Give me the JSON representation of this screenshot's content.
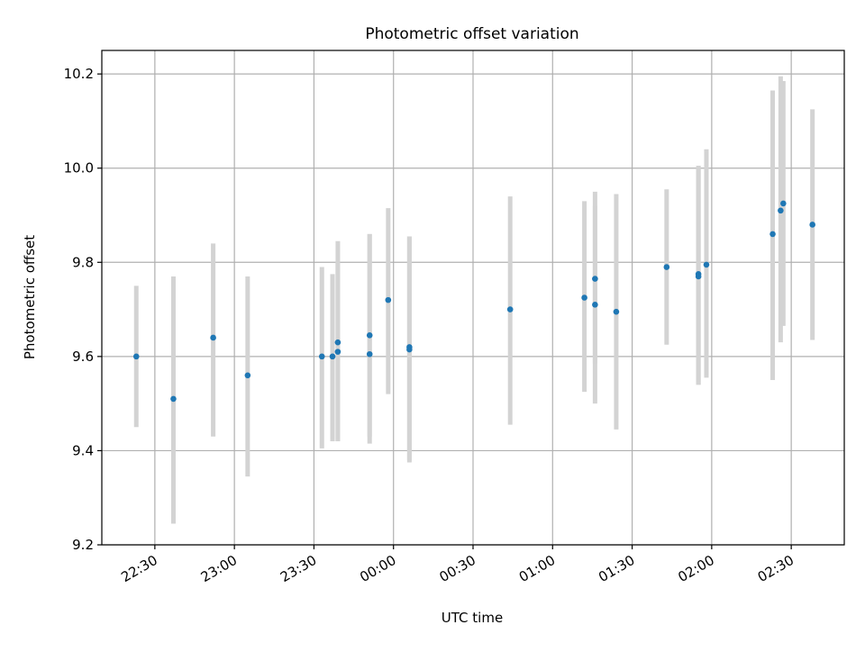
{
  "chart_data": {
    "type": "scatter",
    "title": "Photometric offset variation",
    "xlabel": "UTC time",
    "ylabel": "Photometric offset",
    "ylim": [
      9.2,
      10.25
    ],
    "yticks": [
      "9.2",
      "9.4",
      "9.6",
      "9.8",
      "10.0",
      "10.2"
    ],
    "xlim": [
      "22:10",
      "02:50"
    ],
    "xticks": [
      "22:30",
      "23:00",
      "23:30",
      "00:00",
      "00:30",
      "01:00",
      "01:30",
      "02:00",
      "02:30"
    ],
    "grid": true,
    "point_color": "#1f77b4",
    "errorbar_color": "#d3d3d3",
    "points": [
      {
        "t": "22:23",
        "y": 9.6,
        "lo": 9.45,
        "hi": 9.75
      },
      {
        "t": "22:37",
        "y": 9.51,
        "lo": 9.245,
        "hi": 9.77
      },
      {
        "t": "22:52",
        "y": 9.64,
        "lo": 9.43,
        "hi": 9.84
      },
      {
        "t": "23:05",
        "y": 9.56,
        "lo": 9.345,
        "hi": 9.77
      },
      {
        "t": "23:33",
        "y": 9.6,
        "lo": 9.405,
        "hi": 9.79
      },
      {
        "t": "23:37",
        "y": 9.6,
        "lo": 9.42,
        "hi": 9.775
      },
      {
        "t": "23:39",
        "y": 9.61,
        "lo": 9.42,
        "hi": 9.8
      },
      {
        "t": "23:39",
        "y": 9.63,
        "lo": 9.42,
        "hi": 9.845
      },
      {
        "t": "23:51",
        "y": 9.605,
        "lo": 9.415,
        "hi": 9.86
      },
      {
        "t": "23:51",
        "y": 9.645,
        "lo": 9.43,
        "hi": 9.86
      },
      {
        "t": "23:58",
        "y": 9.72,
        "lo": 9.52,
        "hi": 9.915
      },
      {
        "t": "00:06",
        "y": 9.62,
        "lo": 9.375,
        "hi": 9.855
      },
      {
        "t": "00:06",
        "y": 9.615,
        "lo": 9.38,
        "hi": 9.855
      },
      {
        "t": "00:44",
        "y": 9.7,
        "lo": 9.455,
        "hi": 9.94
      },
      {
        "t": "01:12",
        "y": 9.725,
        "lo": 9.525,
        "hi": 9.93
      },
      {
        "t": "01:16",
        "y": 9.71,
        "lo": 9.5,
        "hi": 9.92
      },
      {
        "t": "01:16",
        "y": 9.765,
        "lo": 9.585,
        "hi": 9.95
      },
      {
        "t": "01:24",
        "y": 9.695,
        "lo": 9.445,
        "hi": 9.945
      },
      {
        "t": "01:43",
        "y": 9.79,
        "lo": 9.625,
        "hi": 9.955
      },
      {
        "t": "01:55",
        "y": 9.775,
        "lo": 9.54,
        "hi": 10.005
      },
      {
        "t": "01:55",
        "y": 9.77,
        "lo": 9.54,
        "hi": 10.005
      },
      {
        "t": "01:58",
        "y": 9.795,
        "lo": 9.555,
        "hi": 10.04
      },
      {
        "t": "02:23",
        "y": 9.86,
        "lo": 9.55,
        "hi": 10.165
      },
      {
        "t": "02:26",
        "y": 9.91,
        "lo": 9.63,
        "hi": 10.195
      },
      {
        "t": "02:27",
        "y": 9.925,
        "lo": 9.665,
        "hi": 10.185
      },
      {
        "t": "02:38",
        "y": 9.88,
        "lo": 9.635,
        "hi": 10.125
      }
    ]
  }
}
